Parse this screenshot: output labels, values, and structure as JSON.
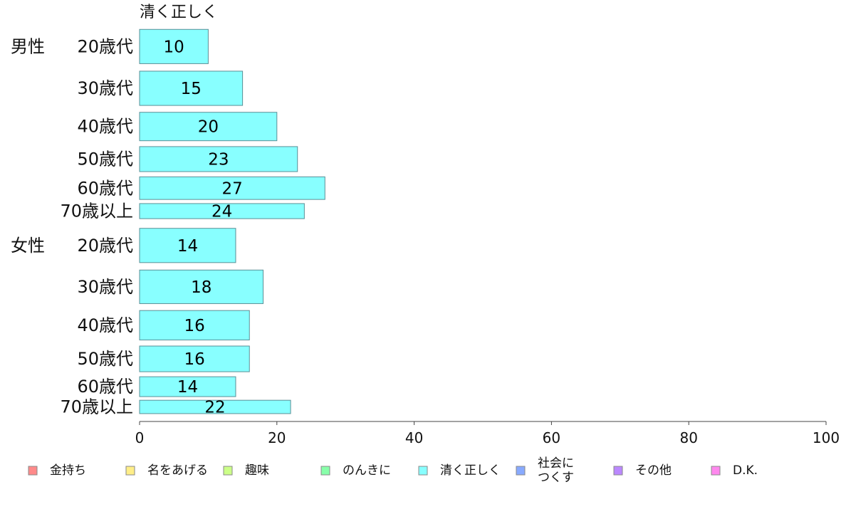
{
  "chart_data": {
    "type": "bar",
    "orientation": "horizontal",
    "series_title": "清く正しく",
    "groups": [
      {
        "name": "男性",
        "categories": [
          "20歳代",
          "30歳代",
          "40歳代",
          "50歳代",
          "60歳代",
          "70歳以上"
        ],
        "values": [
          10,
          15,
          20,
          23,
          27,
          24
        ],
        "relative_weights": [
          1.0,
          1.0,
          0.83,
          0.73,
          0.66,
          0.44
        ]
      },
      {
        "name": "女性",
        "categories": [
          "20歳代",
          "30歳代",
          "40歳代",
          "50歳代",
          "60歳代",
          "70歳以上"
        ],
        "values": [
          14,
          18,
          16,
          16,
          14,
          22
        ],
        "relative_weights": [
          1.0,
          0.98,
          0.86,
          0.75,
          0.58,
          0.39
        ]
      }
    ],
    "xlim": [
      0,
      100
    ],
    "xticks": [
      0,
      20,
      40,
      60,
      80,
      100
    ],
    "bar_color": "#88ffff",
    "legend": {
      "placement": "bottom",
      "items": [
        {
          "label": "金持ち",
          "color": "#ff8a8a"
        },
        {
          "label": "名をあげる",
          "color": "#ffee88"
        },
        {
          "label": "趣味",
          "color": "#ccff88"
        },
        {
          "label": "のんきに",
          "color": "#88ffaa"
        },
        {
          "label": "清く正しく",
          "color": "#88ffff"
        },
        {
          "label": "社会に\nつくす",
          "color": "#88aaff"
        },
        {
          "label": "その他",
          "color": "#bb88ff"
        },
        {
          "label": "D.K.",
          "color": "#ff88ee"
        }
      ]
    }
  }
}
